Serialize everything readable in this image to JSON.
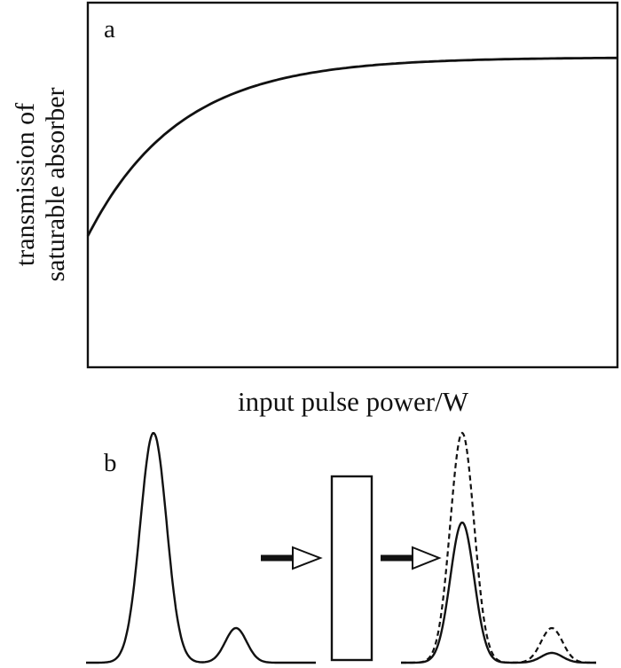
{
  "panel_a": {
    "label": "a",
    "ylabel_line1": "transmission of",
    "ylabel_line2": "saturable absorber",
    "xlabel": "input pulse power/W"
  },
  "panel_b": {
    "label": "b"
  },
  "chart_data": {
    "type": "line",
    "series": [
      {
        "curve": "saturating transmission",
        "shape": "rises from a finite initial transmission and saturates to a plateau",
        "initial_fraction": 0.36,
        "saturated_fraction": 0.85
      }
    ],
    "grid": false,
    "ticks": false
  }
}
